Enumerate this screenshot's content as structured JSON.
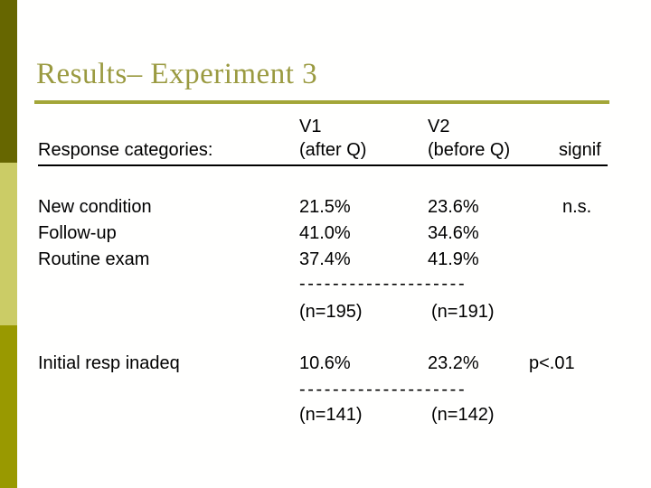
{
  "slide": {
    "title": "Results– Experiment 3",
    "title_color": "#9a9a40",
    "rule_color": "#a3a638",
    "sidebar_colors": {
      "top": "#666600",
      "middle": "#cbcc66",
      "bottom": "#999900"
    }
  },
  "table": {
    "header": {
      "v1_line1": "V1",
      "v2_line1": "V2",
      "row_label": "Response categories:",
      "v1_line2": "(after Q)",
      "v2_line2": "(before Q)",
      "signif": "signif"
    },
    "block1": {
      "rows": [
        {
          "label": "New condition",
          "v1": "21.5%",
          "v2": "23.6%",
          "signif": "n.s."
        },
        {
          "label": "Follow-up",
          "v1": "41.0%",
          "v2": "34.6%",
          "signif": ""
        },
        {
          "label": "Routine exam",
          "v1": "37.4%",
          "v2": "41.9%",
          "signif": ""
        }
      ],
      "divider": "--------------------",
      "n_v1": "(n=195)",
      "n_v2": "(n=191)"
    },
    "block2": {
      "rows": [
        {
          "label": "Initial resp inadeq",
          "v1": "10.6%",
          "v2": "23.2%",
          "signif": "p<.01"
        }
      ],
      "divider": "--------------------",
      "n_v1": "(n=141)",
      "n_v2": "(n=142)"
    }
  }
}
